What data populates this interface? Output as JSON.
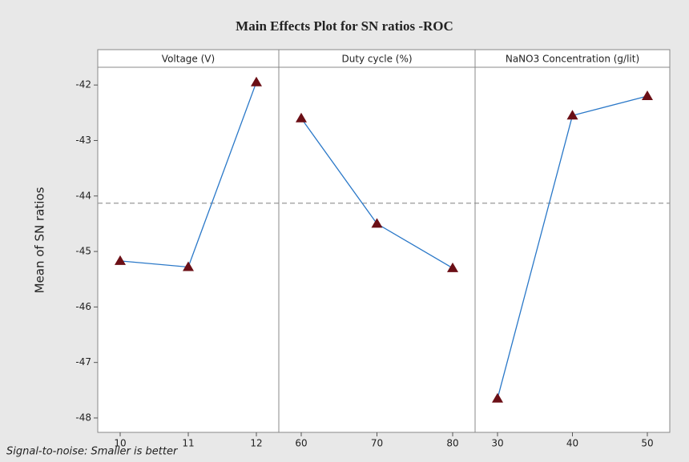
{
  "chart_data": {
    "type": "line",
    "title": "Main Effects Plot for SN ratios -ROC",
    "ylabel": "Mean of SN ratios",
    "footnote": "Signal-to-noise: Smaller is better",
    "line_color": "#2a78c8",
    "marker_color": "#6b0f16",
    "reference_line": -44.13,
    "ylim": [
      -48.26,
      -41.68
    ],
    "yticks": [
      -48,
      -47,
      -46,
      -45,
      -44,
      -43,
      -42
    ],
    "panels": [
      {
        "title": "Voltage (V)",
        "categories": [
          "10",
          "11",
          "12"
        ],
        "values": [
          -45.17,
          -45.28,
          -41.95
        ]
      },
      {
        "title": "Duty cycle (%)",
        "categories": [
          "60",
          "70",
          "80"
        ],
        "values": [
          -42.6,
          -44.5,
          -45.3
        ]
      },
      {
        "title": "NaNO3 Concentration (g/lit)",
        "categories": [
          "30",
          "40",
          "50"
        ],
        "values": [
          -47.65,
          -42.55,
          -42.2
        ]
      }
    ]
  }
}
